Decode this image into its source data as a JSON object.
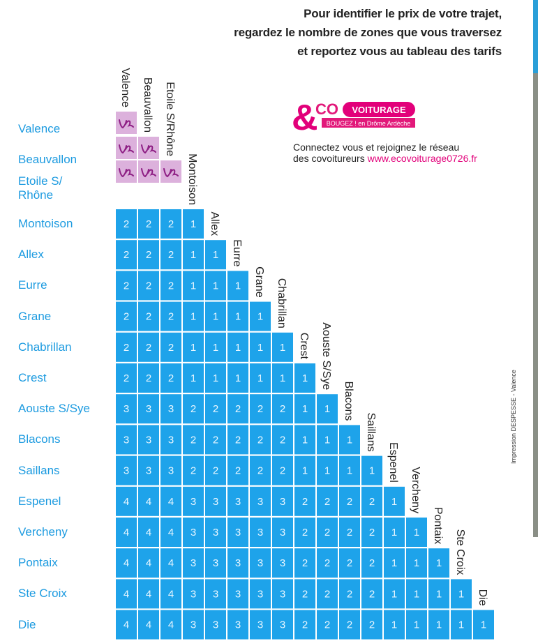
{
  "header": {
    "lines": [
      "Pour identifier le prix de votre trajet,",
      "regardez le nombre de zones que vous traversez",
      "et reportez vous au tableau des tarifs"
    ]
  },
  "logo": {
    "mark": "&",
    "co": "CO",
    "voiturage": "VOITURAGE",
    "tagline": "BOUGEZ ! en Drôme Ardèche"
  },
  "connect": {
    "line1": "Connectez vous et rejoignez le réseau",
    "line2": "des covoitureurs",
    "url": "www.ecovoiturage0726.fr"
  },
  "table": {
    "columns": [
      "Valence",
      "Beauvallon",
      "Etoile S/Rhône",
      "Montoison",
      "Allex",
      "Eurre",
      "Grane",
      "Chabrillan",
      "Crest",
      "Aouste S/Sye",
      "Blacons",
      "Saillans",
      "Espenel",
      "Vercheny",
      "Pontaix",
      "Ste Croix",
      "Die"
    ],
    "rows": [
      {
        "label": "Valence"
      },
      {
        "label": "Beauvallon"
      },
      {
        "label": "Etoile S/\nRhône"
      },
      {
        "label": "Montoison",
        "values": [
          2,
          2,
          2,
          1
        ]
      },
      {
        "label": "Allex",
        "values": [
          2,
          2,
          2,
          1,
          1
        ]
      },
      {
        "label": "Eurre",
        "values": [
          2,
          2,
          2,
          1,
          1,
          1
        ]
      },
      {
        "label": "Grane",
        "values": [
          2,
          2,
          2,
          1,
          1,
          1,
          1
        ]
      },
      {
        "label": "Chabrillan",
        "values": [
          2,
          2,
          2,
          1,
          1,
          1,
          1,
          1
        ]
      },
      {
        "label": "Crest",
        "values": [
          2,
          2,
          2,
          1,
          1,
          1,
          1,
          1,
          1
        ]
      },
      {
        "label": "Aouste S/Sye",
        "values": [
          3,
          3,
          3,
          2,
          2,
          2,
          2,
          2,
          1,
          1
        ]
      },
      {
        "label": "Blacons",
        "values": [
          3,
          3,
          3,
          2,
          2,
          2,
          2,
          2,
          1,
          1,
          1
        ]
      },
      {
        "label": "Saillans",
        "values": [
          3,
          3,
          3,
          2,
          2,
          2,
          2,
          2,
          1,
          1,
          1,
          1
        ]
      },
      {
        "label": "Espenel",
        "values": [
          4,
          4,
          4,
          3,
          3,
          3,
          3,
          3,
          2,
          2,
          2,
          2,
          1
        ]
      },
      {
        "label": "Vercheny",
        "values": [
          4,
          4,
          4,
          3,
          3,
          3,
          3,
          3,
          2,
          2,
          2,
          2,
          1,
          1
        ]
      },
      {
        "label": "Pontaix",
        "values": [
          4,
          4,
          4,
          3,
          3,
          3,
          3,
          3,
          2,
          2,
          2,
          2,
          1,
          1,
          1
        ]
      },
      {
        "label": "Ste Croix",
        "values": [
          4,
          4,
          4,
          3,
          3,
          3,
          3,
          3,
          2,
          2,
          2,
          2,
          1,
          1,
          1,
          1
        ]
      },
      {
        "label": "Die",
        "values": [
          4,
          4,
          4,
          3,
          3,
          3,
          3,
          3,
          2,
          2,
          2,
          2,
          1,
          1,
          1,
          1,
          1
        ]
      }
    ]
  },
  "print_credit": "Impression DESPESSE - Valence"
}
